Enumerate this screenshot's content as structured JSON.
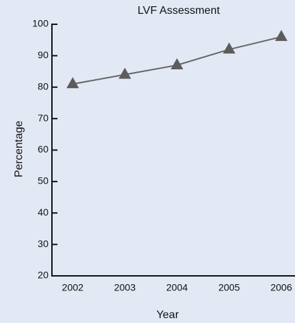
{
  "chart_data": {
    "type": "line",
    "title": "LVF Assessment",
    "x_label": "Year",
    "y_label": "Percentage",
    "categories": [
      "2002",
      "2003",
      "2004",
      "2005",
      "2006"
    ],
    "values": [
      81,
      84,
      87,
      92,
      96
    ],
    "color": "#666666",
    "marker_color": "#5c5c5c",
    "ylim": [
      20,
      100
    ],
    "yticks": [
      20,
      30,
      40,
      50,
      60,
      70,
      80,
      90,
      100
    ],
    "grid": false
  }
}
